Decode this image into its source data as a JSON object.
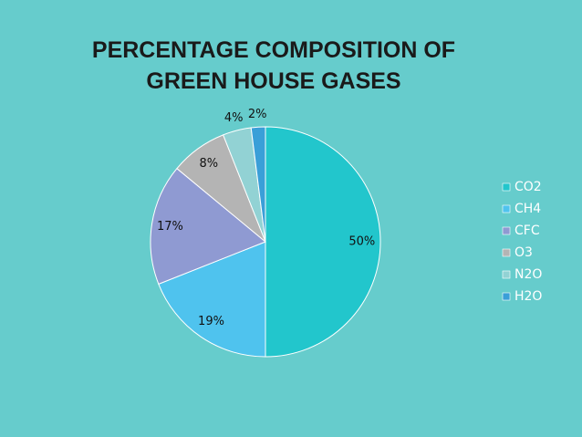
{
  "chart_data": {
    "type": "pie",
    "title": "PERCENTAGE COMPOSITION OF GREEN HOUSE GASES",
    "categories": [
      "CO2",
      "CH4",
      "CFC",
      "O3",
      "N2O",
      "H2O"
    ],
    "values": [
      50,
      19,
      17,
      8,
      4,
      2
    ],
    "value_labels": [
      "50%",
      "19%",
      "17%",
      "8%",
      "4%",
      "2%"
    ],
    "colors": [
      "#22c6cc",
      "#4fc3ee",
      "#8f9ad2",
      "#b4b4b4",
      "#92d2d4",
      "#3a9fd8"
    ],
    "legend": "right"
  }
}
